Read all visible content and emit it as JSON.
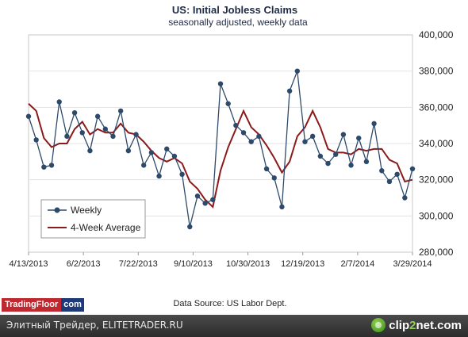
{
  "chart_data": {
    "type": "line",
    "title": "US: Initial Jobless Claims",
    "subtitle": "seasonally  adjusted,  weekly data",
    "ylim": [
      280000,
      400000
    ],
    "yticks": [
      "280,000",
      "300,000",
      "320,000",
      "340,000",
      "360,000",
      "380,000",
      "400,000"
    ],
    "ytick_values": [
      280000,
      300000,
      320000,
      340000,
      360000,
      380000,
      400000
    ],
    "xtick_labels": [
      "4/13/2013",
      "6/2/2013",
      "7/22/2013",
      "9/10/2013",
      "10/30/2013",
      "12/19/2013",
      "2/7/2014",
      "3/29/2014"
    ],
    "legend_position": "bottom-left",
    "grid": "horizontal",
    "series": [
      {
        "name": "Weekly",
        "color": "#2e4a6b",
        "marker": "circle",
        "values": [
          355000,
          342000,
          327000,
          328000,
          363000,
          344000,
          357000,
          346000,
          336000,
          355000,
          348000,
          344000,
          358000,
          336000,
          345000,
          328000,
          335000,
          322000,
          337000,
          333000,
          323000,
          294000,
          311000,
          307000,
          309000,
          373000,
          362000,
          350000,
          346000,
          341000,
          344000,
          326000,
          321000,
          305000,
          369000,
          380000,
          341000,
          344000,
          333000,
          329000,
          334000,
          345000,
          328000,
          343000,
          330000,
          351000,
          325000,
          319000,
          323000,
          310000,
          326000
        ]
      },
      {
        "name": "4-Week Average",
        "color": "#8b1a1a",
        "values": [
          362000,
          358000,
          343000,
          338000,
          340000,
          340000,
          348000,
          352000,
          345000,
          348000,
          346000,
          346000,
          351000,
          346000,
          345000,
          341000,
          336000,
          332000,
          330000,
          332000,
          329000,
          319000,
          315000,
          309000,
          305000,
          325000,
          338000,
          348000,
          358000,
          349000,
          345000,
          339000,
          332000,
          324000,
          330000,
          344000,
          349000,
          358000,
          349000,
          337000,
          335000,
          335000,
          334000,
          337000,
          336000,
          337000,
          337000,
          331000,
          329000,
          319000,
          320000
        ]
      }
    ]
  },
  "footer": {
    "source": "Data Source: US Labor Dept.",
    "brand_main": "TradingFloor",
    "brand_com": "com",
    "caption": "Элитный Трейдер, ELITETRADER.RU",
    "clip_prefix": "clip",
    "clip_digit": "2",
    "clip_suffix": "net.com"
  }
}
